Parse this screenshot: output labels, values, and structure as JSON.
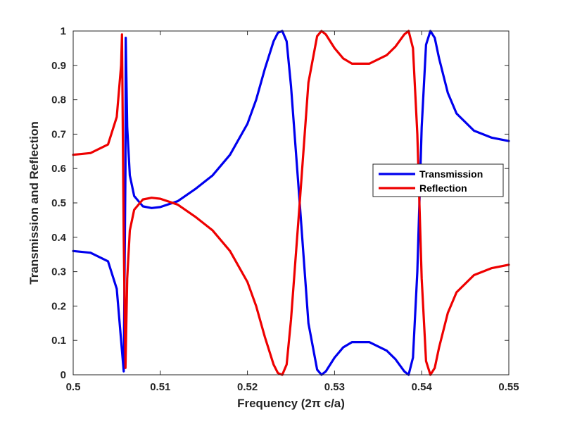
{
  "chart_data": {
    "type": "line",
    "title": "",
    "xlabel": "Frequency (2π c/a)",
    "ylabel": "Transmission and Reflection",
    "xlim": [
      0.5,
      0.55
    ],
    "ylim": [
      0,
      1
    ],
    "xticks": [
      0.5,
      0.51,
      0.52,
      0.53,
      0.54,
      0.55
    ],
    "xtick_labels": [
      "0.5",
      "0.51",
      "0.52",
      "0.53",
      "0.54",
      "0.55"
    ],
    "yticks": [
      0,
      0.1,
      0.2,
      0.3,
      0.4,
      0.5,
      0.6,
      0.7,
      0.8,
      0.9,
      1
    ],
    "ytick_labels": [
      "0",
      "0.1",
      "0.2",
      "0.3",
      "0.4",
      "0.5",
      "0.6",
      "0.7",
      "0.8",
      "0.9",
      "1"
    ],
    "grid": false,
    "legend_position": "right",
    "series": [
      {
        "name": "Transmission",
        "color": "#0000ee",
        "x": [
          0.5,
          0.502,
          0.504,
          0.505,
          0.5055,
          0.5058,
          0.506,
          0.50603,
          0.5062,
          0.5065,
          0.507,
          0.508,
          0.509,
          0.51,
          0.512,
          0.514,
          0.516,
          0.518,
          0.52,
          0.521,
          0.522,
          0.523,
          0.5235,
          0.524,
          0.5245,
          0.525,
          0.526,
          0.527,
          0.528,
          0.5285,
          0.529,
          0.53,
          0.531,
          0.532,
          0.534,
          0.536,
          0.537,
          0.538,
          0.5385,
          0.539,
          0.5395,
          0.54,
          0.5405,
          0.541,
          0.5415,
          0.542,
          0.543,
          0.544,
          0.546,
          0.548,
          0.55
        ],
        "y": [
          0.36,
          0.355,
          0.33,
          0.25,
          0.1,
          0.01,
          0.6,
          0.98,
          0.72,
          0.58,
          0.52,
          0.49,
          0.485,
          0.488,
          0.505,
          0.54,
          0.58,
          0.64,
          0.73,
          0.8,
          0.89,
          0.97,
          0.995,
          1.0,
          0.97,
          0.84,
          0.5,
          0.15,
          0.015,
          0.0,
          0.01,
          0.05,
          0.08,
          0.095,
          0.095,
          0.07,
          0.045,
          0.01,
          0.0,
          0.05,
          0.3,
          0.72,
          0.96,
          1.0,
          0.98,
          0.92,
          0.82,
          0.76,
          0.71,
          0.69,
          0.68
        ]
      },
      {
        "name": "Reflection",
        "color": "#ee0000",
        "x": [
          0.5,
          0.502,
          0.504,
          0.505,
          0.5055,
          0.5056,
          0.5058,
          0.506,
          0.5062,
          0.5065,
          0.507,
          0.508,
          0.509,
          0.51,
          0.512,
          0.514,
          0.516,
          0.518,
          0.52,
          0.521,
          0.522,
          0.523,
          0.5235,
          0.524,
          0.5245,
          0.525,
          0.526,
          0.527,
          0.528,
          0.5285,
          0.529,
          0.53,
          0.531,
          0.532,
          0.534,
          0.536,
          0.537,
          0.538,
          0.5385,
          0.539,
          0.5395,
          0.54,
          0.5405,
          0.541,
          0.5415,
          0.542,
          0.543,
          0.544,
          0.546,
          0.548,
          0.55
        ],
        "y": [
          0.64,
          0.645,
          0.67,
          0.75,
          0.9,
          0.99,
          0.4,
          0.02,
          0.28,
          0.42,
          0.48,
          0.51,
          0.515,
          0.512,
          0.495,
          0.46,
          0.42,
          0.36,
          0.27,
          0.2,
          0.11,
          0.03,
          0.005,
          0.0,
          0.03,
          0.16,
          0.5,
          0.85,
          0.985,
          1.0,
          0.99,
          0.95,
          0.92,
          0.905,
          0.905,
          0.93,
          0.955,
          0.99,
          1.0,
          0.95,
          0.7,
          0.28,
          0.04,
          0.0,
          0.02,
          0.08,
          0.18,
          0.24,
          0.29,
          0.31,
          0.32
        ]
      }
    ]
  }
}
